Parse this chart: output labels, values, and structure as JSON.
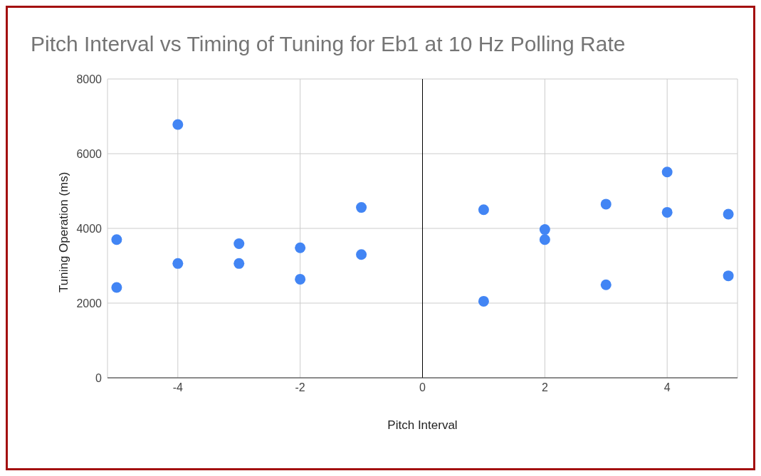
{
  "chart_data": {
    "type": "scatter",
    "title": "Pitch Interval vs Timing of Tuning for Eb1 at 10 Hz Polling Rate",
    "xlabel": "Pitch Interval",
    "ylabel": "Tuning Operation (ms)",
    "x": [
      -5,
      -5,
      -4,
      -4,
      -3,
      -3,
      -2,
      -2,
      -1,
      -1,
      1,
      1,
      2,
      2,
      3,
      3,
      4,
      4,
      5,
      5
    ],
    "values": [
      3700,
      2420,
      6780,
      3060,
      3590,
      3060,
      3480,
      2640,
      4560,
      3300,
      4500,
      2050,
      3970,
      3700,
      4650,
      2490,
      5510,
      4430,
      4380,
      2730
    ],
    "color": "#4285f4",
    "marker": "circle",
    "xlim": [
      -5.15,
      5.15
    ],
    "xticks": [
      -4,
      -2,
      0,
      2,
      4
    ],
    "ylim": [
      0,
      8000
    ],
    "yticks": [
      0,
      2000,
      4000,
      6000,
      8000
    ],
    "grid": true,
    "ref_lines": [
      {
        "axis": "x",
        "value": 0,
        "color": "#000000"
      }
    ]
  }
}
